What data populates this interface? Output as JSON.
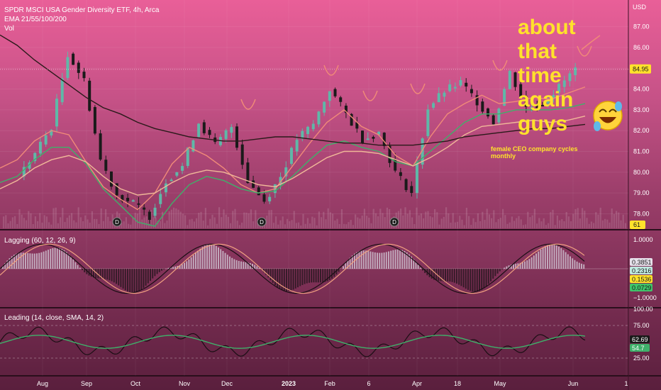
{
  "header": {
    "title": "SPDR MSCI USA Gender Diversity ETF, 4h, Arca",
    "ema_label": "EMA 21/55/100/200",
    "vol_label": "Vol",
    "currency": "USD"
  },
  "overlay": {
    "lines": [
      "about",
      "that",
      "time",
      "again",
      "guys"
    ],
    "note": "female CEO company cycles monthly"
  },
  "price_axis": {
    "ticks": [
      "87.00",
      "86.00",
      "85.00",
      "84.00",
      "83.00",
      "82.00",
      "81.00",
      "80.00",
      "79.00",
      "78.00"
    ],
    "last_price": "84.95",
    "vol_tag": "61"
  },
  "macd": {
    "label": "Lagging (60, 12, 26, 9)",
    "ticks": [
      "1.0000",
      "−1.0000"
    ],
    "tags": [
      "0.3851",
      "0.2316",
      "0.1536",
      "0.0729"
    ]
  },
  "leading": {
    "label": "Leading (14, close, SMA, 14, 2)",
    "ticks": [
      "100.00",
      "75.00",
      "25.00"
    ],
    "tags": [
      "62.69",
      "54.7"
    ]
  },
  "time_axis": {
    "labels": [
      "Aug",
      "Sep",
      "Oct",
      "Nov",
      "Dec",
      "2023",
      "Feb",
      "6",
      "Apr",
      "18",
      "May",
      "Jun",
      "1"
    ]
  },
  "colors": {
    "up": "#5fb8a8",
    "down": "#1a1a1a",
    "ema21": "#f08a78",
    "ema55": "#3fb06a",
    "ema100": "#f0b898",
    "ema200": "#2a1a1a",
    "overlay_text": "#ffe22b"
  },
  "chart_data": {
    "type": "candlestick",
    "title": "SPDR MSCI USA Gender Diversity ETF, 4h, Arca",
    "ylabel": "USD",
    "ylim": [
      77.3,
      87.6
    ],
    "x_labels": [
      "Aug",
      "Sep",
      "Oct",
      "Nov",
      "Dec",
      "2023",
      "Feb",
      "6",
      "Apr",
      "18",
      "May",
      "Jun",
      "1"
    ],
    "price_close_approx": [
      79.8,
      80.9,
      82.2,
      85.7,
      84.4,
      80.6,
      78.9,
      78.5,
      77.9,
      79.6,
      80.3,
      82.4,
      81.3,
      82.2,
      79.6,
      78.6,
      79.8,
      81.6,
      82.3,
      84.0,
      82.8,
      81.6,
      81.9,
      80.0,
      79.0,
      83.1,
      83.9,
      84.3,
      83.4,
      82.4,
      84.8,
      83.1,
      83.3,
      84.1,
      84.95
    ],
    "series": [
      {
        "name": "EMA 21",
        "values": [
          80.2,
          80.6,
          81.5,
          82.0,
          81.8,
          80.5,
          79.3,
          78.7,
          78.2,
          79.0,
          80.4,
          81.2,
          80.8,
          80.2,
          79.4,
          79.0,
          79.2,
          80.3,
          81.4,
          82.4,
          83.0,
          82.2,
          81.8,
          80.8,
          80.3,
          81.7,
          82.8,
          83.3,
          83.7,
          83.3,
          83.4,
          83.6,
          83.5,
          83.8,
          84.1
        ]
      },
      {
        "name": "EMA 55",
        "values": [
          79.5,
          79.8,
          80.6,
          81.2,
          81.2,
          80.4,
          79.2,
          78.4,
          77.6,
          77.4,
          78.5,
          79.4,
          79.8,
          79.6,
          79.2,
          79.0,
          79.1,
          79.8,
          80.6,
          81.3,
          81.5,
          81.2,
          81.0,
          80.5,
          80.3,
          81.0,
          81.7,
          82.4,
          82.8,
          82.8,
          83.0,
          83.0,
          83.0,
          83.1,
          83.3
        ]
      },
      {
        "name": "EMA 100",
        "values": [
          79.2,
          79.6,
          80.2,
          80.6,
          80.8,
          80.5,
          79.8,
          79.2,
          78.9,
          79.0,
          79.5,
          79.9,
          80.1,
          80.0,
          79.7,
          79.4,
          79.3,
          79.7,
          80.2,
          80.7,
          81.0,
          81.0,
          80.9,
          80.6,
          80.3,
          80.7,
          81.2,
          81.8,
          82.2,
          82.3,
          82.4,
          82.5,
          82.4,
          82.5,
          82.7
        ]
      },
      {
        "name": "EMA 200",
        "values": [
          86.6,
          86.1,
          85.4,
          84.8,
          84.2,
          83.6,
          83.1,
          82.8,
          82.4,
          82.1,
          81.9,
          81.7,
          81.6,
          81.5,
          81.5,
          81.6,
          81.7,
          81.7,
          81.6,
          81.5,
          81.4,
          81.4,
          81.3,
          81.3,
          81.3,
          81.4,
          81.5,
          81.7,
          81.8,
          81.9,
          82.0,
          82.1,
          82.1,
          82.2,
          82.3
        ]
      }
    ],
    "macd": {
      "ylim": [
        -1.3,
        1.3
      ],
      "last_values": [
        0.3851,
        0.2316,
        0.1536,
        0.0729
      ]
    },
    "leading": {
      "ylim": [
        0,
        100
      ],
      "last_values": [
        62.69,
        54.7
      ]
    }
  }
}
